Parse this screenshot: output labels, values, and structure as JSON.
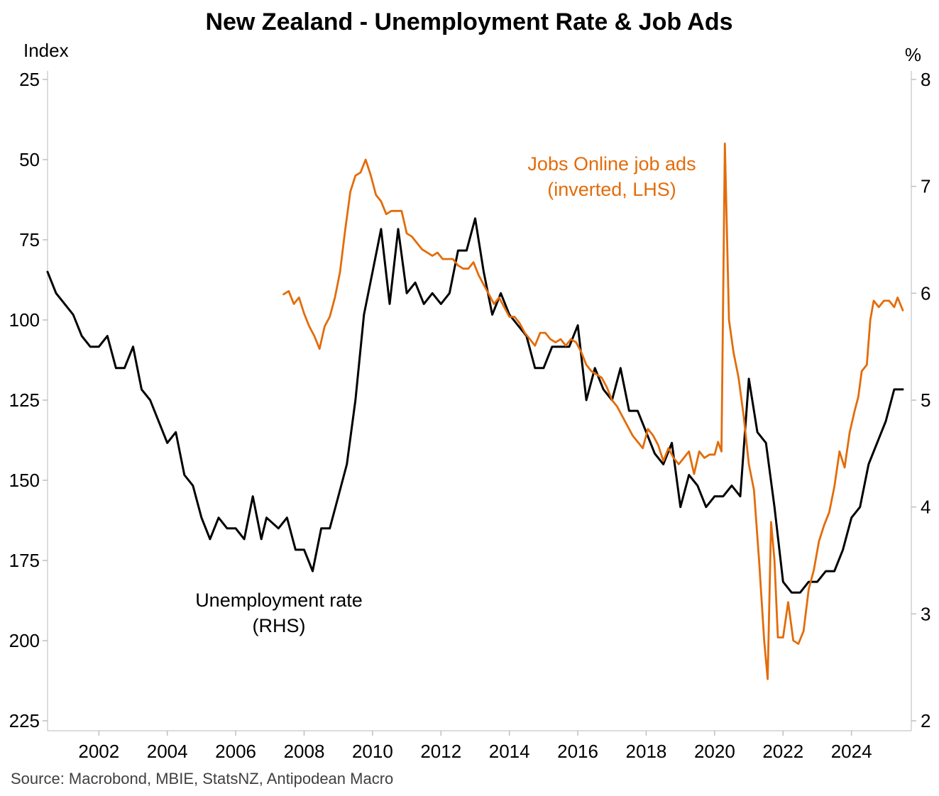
{
  "chart_data": {
    "type": "line",
    "title": "New Zealand - Unemployment Rate & Job Ads",
    "source": "Source: Macrobond, MBIE, StatsNZ, Antipodean Macro",
    "left_axis": {
      "unit": "Index",
      "inverted": true,
      "range": [
        25,
        225
      ],
      "ticks": [
        25,
        50,
        75,
        100,
        125,
        150,
        175,
        200,
        225
      ]
    },
    "right_axis": {
      "unit": "%",
      "range": [
        2,
        8
      ],
      "ticks": [
        2,
        3,
        4,
        5,
        6,
        7,
        8
      ]
    },
    "x_axis": {
      "range": [
        2000.5,
        2025.75
      ],
      "ticks": [
        2002,
        2004,
        2006,
        2008,
        2010,
        2012,
        2014,
        2016,
        2018,
        2020,
        2022,
        2024
      ]
    },
    "grid": false,
    "annotations": {
      "job_ads_line1": "Jobs Online job ads",
      "job_ads_line2": "(inverted, LHS)",
      "unemp_line1": "Unemployment rate",
      "unemp_line2": "(RHS)"
    },
    "series": [
      {
        "name": "Unemployment rate",
        "axis": "right",
        "color": "#000000",
        "points": [
          [
            2000.5,
            6.2
          ],
          [
            2000.75,
            6.0
          ],
          [
            2001.0,
            5.9
          ],
          [
            2001.25,
            5.8
          ],
          [
            2001.5,
            5.6
          ],
          [
            2001.75,
            5.5
          ],
          [
            2002.0,
            5.5
          ],
          [
            2002.25,
            5.6
          ],
          [
            2002.5,
            5.3
          ],
          [
            2002.75,
            5.3
          ],
          [
            2003.0,
            5.5
          ],
          [
            2003.25,
            5.1
          ],
          [
            2003.5,
            5.0
          ],
          [
            2003.75,
            4.8
          ],
          [
            2004.0,
            4.6
          ],
          [
            2004.25,
            4.7
          ],
          [
            2004.5,
            4.3
          ],
          [
            2004.75,
            4.2
          ],
          [
            2005.0,
            3.9
          ],
          [
            2005.25,
            3.7
          ],
          [
            2005.5,
            3.9
          ],
          [
            2005.75,
            3.8
          ],
          [
            2006.0,
            3.8
          ],
          [
            2006.25,
            3.7
          ],
          [
            2006.5,
            4.1
          ],
          [
            2006.75,
            3.7
          ],
          [
            2006.9,
            3.9
          ],
          [
            2007.25,
            3.8
          ],
          [
            2007.5,
            3.9
          ],
          [
            2007.75,
            3.6
          ],
          [
            2008.0,
            3.6
          ],
          [
            2008.25,
            3.4
          ],
          [
            2008.5,
            3.8
          ],
          [
            2008.75,
            3.8
          ],
          [
            2009.0,
            4.1
          ],
          [
            2009.25,
            4.4
          ],
          [
            2009.5,
            5.0
          ],
          [
            2009.75,
            5.8
          ],
          [
            2010.0,
            6.2
          ],
          [
            2010.25,
            6.6
          ],
          [
            2010.5,
            5.9
          ],
          [
            2010.75,
            6.6
          ],
          [
            2011.0,
            6.0
          ],
          [
            2011.25,
            6.1
          ],
          [
            2011.5,
            5.9
          ],
          [
            2011.75,
            6.0
          ],
          [
            2012.0,
            5.9
          ],
          [
            2012.25,
            6.0
          ],
          [
            2012.5,
            6.4
          ],
          [
            2012.75,
            6.4
          ],
          [
            2013.0,
            6.7
          ],
          [
            2013.25,
            6.2
          ],
          [
            2013.5,
            5.8
          ],
          [
            2013.75,
            6.0
          ],
          [
            2014.0,
            5.8
          ],
          [
            2014.25,
            5.7
          ],
          [
            2014.5,
            5.6
          ],
          [
            2014.75,
            5.3
          ],
          [
            2015.0,
            5.3
          ],
          [
            2015.25,
            5.5
          ],
          [
            2015.5,
            5.5
          ],
          [
            2015.75,
            5.5
          ],
          [
            2016.0,
            5.7
          ],
          [
            2016.25,
            5.0
          ],
          [
            2016.5,
            5.3
          ],
          [
            2016.75,
            5.1
          ],
          [
            2017.0,
            5.0
          ],
          [
            2017.25,
            5.3
          ],
          [
            2017.5,
            4.9
          ],
          [
            2017.75,
            4.9
          ],
          [
            2018.0,
            4.7
          ],
          [
            2018.25,
            4.5
          ],
          [
            2018.5,
            4.4
          ],
          [
            2018.75,
            4.6
          ],
          [
            2019.0,
            4.0
          ],
          [
            2019.25,
            4.3
          ],
          [
            2019.5,
            4.2
          ],
          [
            2019.75,
            4.0
          ],
          [
            2020.0,
            4.1
          ],
          [
            2020.25,
            4.1
          ],
          [
            2020.5,
            4.2
          ],
          [
            2020.75,
            4.1
          ],
          [
            2021.0,
            5.2
          ],
          [
            2021.25,
            4.7
          ],
          [
            2021.5,
            4.6
          ],
          [
            2021.75,
            4.0
          ],
          [
            2022.0,
            3.3
          ],
          [
            2022.25,
            3.2
          ],
          [
            2022.5,
            3.2
          ],
          [
            2022.75,
            3.3
          ],
          [
            2023.0,
            3.3
          ],
          [
            2023.25,
            3.4
          ],
          [
            2023.5,
            3.4
          ],
          [
            2023.75,
            3.6
          ],
          [
            2024.0,
            3.9
          ],
          [
            2024.25,
            4.0
          ],
          [
            2024.5,
            4.4
          ],
          [
            2024.75,
            4.6
          ],
          [
            2025.0,
            4.8
          ],
          [
            2025.25,
            5.1
          ],
          [
            2025.5,
            5.1
          ]
        ]
      },
      {
        "name": "Jobs Online job ads",
        "axis": "left",
        "color": "#E36C0A",
        "points": [
          [
            2007.4,
            92
          ],
          [
            2007.55,
            91
          ],
          [
            2007.7,
            95
          ],
          [
            2007.85,
            93
          ],
          [
            2008.0,
            98
          ],
          [
            2008.15,
            102
          ],
          [
            2008.3,
            105
          ],
          [
            2008.45,
            109
          ],
          [
            2008.6,
            102
          ],
          [
            2008.75,
            99
          ],
          [
            2008.9,
            93
          ],
          [
            2009.05,
            85
          ],
          [
            2009.2,
            72
          ],
          [
            2009.35,
            60
          ],
          [
            2009.5,
            55
          ],
          [
            2009.65,
            54
          ],
          [
            2009.8,
            50
          ],
          [
            2009.95,
            55
          ],
          [
            2010.1,
            61
          ],
          [
            2010.25,
            63
          ],
          [
            2010.4,
            67
          ],
          [
            2010.55,
            66
          ],
          [
            2010.7,
            66
          ],
          [
            2010.85,
            66
          ],
          [
            2011.0,
            73
          ],
          [
            2011.15,
            74
          ],
          [
            2011.3,
            76
          ],
          [
            2011.45,
            78
          ],
          [
            2011.6,
            79
          ],
          [
            2011.75,
            80
          ],
          [
            2011.9,
            79
          ],
          [
            2012.05,
            81
          ],
          [
            2012.2,
            81
          ],
          [
            2012.35,
            81
          ],
          [
            2012.5,
            83
          ],
          [
            2012.65,
            84
          ],
          [
            2012.8,
            84
          ],
          [
            2012.95,
            82
          ],
          [
            2013.1,
            86
          ],
          [
            2013.25,
            89
          ],
          [
            2013.4,
            92
          ],
          [
            2013.55,
            95
          ],
          [
            2013.7,
            93
          ],
          [
            2013.85,
            96
          ],
          [
            2014.0,
            99
          ],
          [
            2014.15,
            99
          ],
          [
            2014.3,
            101
          ],
          [
            2014.45,
            104
          ],
          [
            2014.6,
            106
          ],
          [
            2014.75,
            108
          ],
          [
            2014.9,
            104
          ],
          [
            2015.05,
            104
          ],
          [
            2015.2,
            106
          ],
          [
            2015.35,
            107
          ],
          [
            2015.5,
            106
          ],
          [
            2015.65,
            108
          ],
          [
            2015.8,
            106
          ],
          [
            2015.95,
            107
          ],
          [
            2016.1,
            110
          ],
          [
            2016.25,
            114
          ],
          [
            2016.4,
            116
          ],
          [
            2016.55,
            117
          ],
          [
            2016.7,
            118
          ],
          [
            2016.85,
            121
          ],
          [
            2017.0,
            125
          ],
          [
            2017.15,
            127
          ],
          [
            2017.3,
            130
          ],
          [
            2017.45,
            133
          ],
          [
            2017.6,
            136
          ],
          [
            2017.75,
            138
          ],
          [
            2017.9,
            140
          ],
          [
            2018.05,
            134
          ],
          [
            2018.2,
            136
          ],
          [
            2018.35,
            139
          ],
          [
            2018.5,
            144
          ],
          [
            2018.65,
            140
          ],
          [
            2018.8,
            143
          ],
          [
            2018.95,
            145
          ],
          [
            2019.1,
            143
          ],
          [
            2019.25,
            141
          ],
          [
            2019.4,
            148
          ],
          [
            2019.55,
            141
          ],
          [
            2019.7,
            143
          ],
          [
            2019.85,
            142
          ],
          [
            2020.0,
            142
          ],
          [
            2020.1,
            138
          ],
          [
            2020.2,
            141
          ],
          [
            2020.3,
            45
          ],
          [
            2020.42,
            100
          ],
          [
            2020.55,
            110
          ],
          [
            2020.7,
            118
          ],
          [
            2020.85,
            130
          ],
          [
            2021.0,
            145
          ],
          [
            2021.15,
            153
          ],
          [
            2021.3,
            175
          ],
          [
            2021.45,
            200
          ],
          [
            2021.55,
            212
          ],
          [
            2021.65,
            163
          ],
          [
            2021.75,
            175
          ],
          [
            2021.85,
            199
          ],
          [
            2022.0,
            199
          ],
          [
            2022.15,
            188
          ],
          [
            2022.3,
            200
          ],
          [
            2022.45,
            201
          ],
          [
            2022.6,
            197
          ],
          [
            2022.75,
            184
          ],
          [
            2022.9,
            178
          ],
          [
            2023.05,
            169
          ],
          [
            2023.2,
            164
          ],
          [
            2023.35,
            160
          ],
          [
            2023.5,
            152
          ],
          [
            2023.65,
            141
          ],
          [
            2023.8,
            146
          ],
          [
            2023.95,
            135
          ],
          [
            2024.1,
            128
          ],
          [
            2024.2,
            124
          ],
          [
            2024.3,
            116
          ],
          [
            2024.45,
            114
          ],
          [
            2024.55,
            100
          ],
          [
            2024.65,
            94
          ],
          [
            2024.8,
            96
          ],
          [
            2024.95,
            94
          ],
          [
            2025.1,
            94
          ],
          [
            2025.25,
            96
          ],
          [
            2025.35,
            93
          ],
          [
            2025.5,
            97
          ]
        ]
      }
    ]
  }
}
